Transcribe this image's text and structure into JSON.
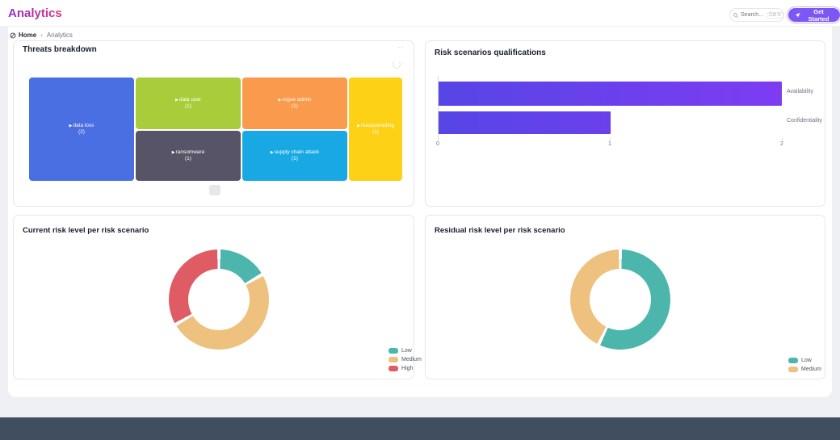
{
  "header": {
    "title": "Analytics",
    "search": {
      "placeholder": "Search...",
      "shortcut": "Ctrl K"
    },
    "get_started_label": "Get Started"
  },
  "breadcrumb": {
    "home": "Home",
    "separator": "›",
    "current": "Analytics"
  },
  "icons": {
    "search": "magnifier",
    "get_started": "paper-plane",
    "home": "circle-slash",
    "card_menu": "··",
    "refresh": "circle-arrow",
    "treemap_expand": "▶"
  },
  "colors": {
    "accent": "#7c57f4",
    "accent_ring": "#c3b2fa",
    "title_grad_start": "#8b30c9",
    "title_grad_end": "#e0317a",
    "bar_start": "#5745e6",
    "bar_end": "#7e3cf2",
    "page_bg": "#eef0f4",
    "sheet_bg": "#ffffff",
    "card_border": "#e5e7eb",
    "footer_band": "#414e60"
  },
  "chart_data": [
    {
      "type": "treemap",
      "title": "Threats breakdown",
      "cells": [
        {
          "label": "data loss",
          "value": 2,
          "count_label": "(2)",
          "color": "#4a6fe3"
        },
        {
          "label": "data user",
          "value": 1,
          "count_label": "(1)",
          "color": "#a8cc3a"
        },
        {
          "label": "ransomware",
          "value": 1,
          "count_label": "(1)",
          "color": "#585468"
        },
        {
          "label": "rogue admin",
          "value": 1,
          "count_label": "(1)",
          "color": "#f99a4c"
        },
        {
          "label": "supply chain attack",
          "value": 1,
          "count_label": "(1)",
          "color": "#18a9e4"
        },
        {
          "label": "masquerading",
          "value": 1,
          "count_label": "(1)",
          "color": "#fcd116"
        }
      ]
    },
    {
      "type": "bar",
      "title": "Risk scenarios qualifications",
      "orientation": "horizontal",
      "categories": [
        "Availability",
        "Confidentiality"
      ],
      "values": [
        2,
        1
      ],
      "xlim": [
        0,
        2
      ],
      "xticks": [
        "0",
        "1",
        "2"
      ],
      "bar_gradient": [
        "#5745e6",
        "#7e3cf2"
      ],
      "grid": false,
      "legend_position": "none"
    },
    {
      "type": "pie",
      "donut": true,
      "title": "Current risk level per risk scenario",
      "labels": [
        "Low",
        "Medium",
        "High"
      ],
      "values": [
        1,
        3,
        2
      ],
      "colors": [
        "#4db6ac",
        "#eec17e",
        "#e05c64"
      ],
      "legend_position": "bottom-right"
    },
    {
      "type": "pie",
      "donut": true,
      "title": "Residual risk level per risk scenario",
      "labels": [
        "Low",
        "Medium"
      ],
      "values": [
        4,
        3
      ],
      "colors": [
        "#4db6ac",
        "#eec17e"
      ],
      "legend_position": "bottom-right"
    }
  ]
}
